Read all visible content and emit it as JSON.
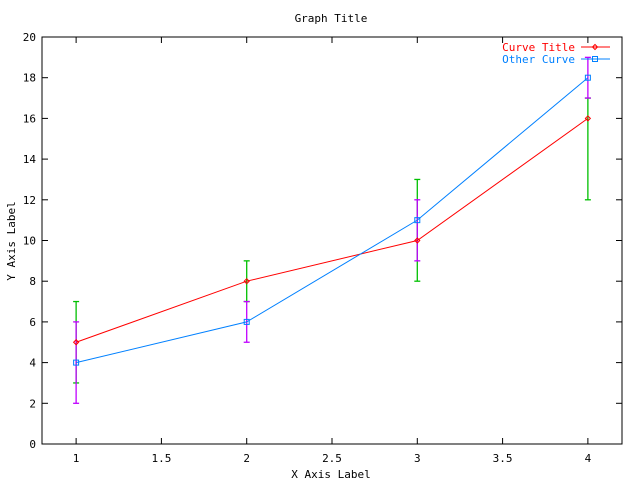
{
  "chart_data": {
    "type": "line",
    "title": "Graph Title",
    "xlabel": "X Axis Label",
    "ylabel": "Y Axis Label",
    "xlim": [
      0.8,
      4.2
    ],
    "ylim": [
      0,
      20
    ],
    "xticks": [
      "1",
      "1.5",
      "2",
      "2.5",
      "3",
      "3.5",
      "4"
    ],
    "xtick_values": [
      1,
      1.5,
      2,
      2.5,
      3,
      3.5,
      4
    ],
    "yticks": [
      "0",
      "2",
      "4",
      "6",
      "8",
      "10",
      "12",
      "14",
      "16",
      "18",
      "20"
    ],
    "ytick_values": [
      0,
      2,
      4,
      6,
      8,
      10,
      12,
      14,
      16,
      18,
      20
    ],
    "legend_position": "top-right",
    "series": [
      {
        "name": "Curve Title",
        "color": "#ff0000",
        "errorbar_color": "#00c000",
        "marker": "diamond",
        "x": [
          1,
          2,
          3,
          4
        ],
        "y": [
          5,
          8,
          10,
          16
        ],
        "ylow": [
          3,
          7,
          8,
          12
        ],
        "yhigh": [
          7,
          9,
          13,
          17
        ]
      },
      {
        "name": "Other Curve",
        "color": "#0080ff",
        "errorbar_color": "#c000ff",
        "marker": "square",
        "x": [
          1,
          2,
          3,
          4
        ],
        "y": [
          4,
          6,
          11,
          18
        ],
        "ylow": [
          2,
          5,
          9,
          17
        ],
        "yhigh": [
          6,
          7,
          12,
          19
        ]
      }
    ]
  }
}
